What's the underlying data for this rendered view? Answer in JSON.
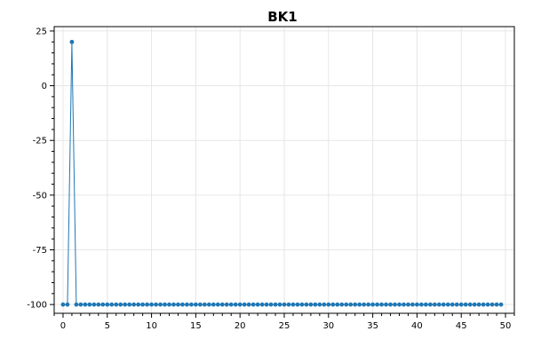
{
  "chart_data": {
    "type": "line",
    "title": "BK1",
    "xlabel": "",
    "ylabel": "",
    "xlim": [
      -1,
      51
    ],
    "ylim": [
      -104,
      27
    ],
    "x_ticks": [
      0,
      5,
      10,
      15,
      20,
      25,
      30,
      35,
      40,
      45,
      50
    ],
    "y_ticks": [
      -100,
      -75,
      -50,
      -25,
      0,
      25
    ],
    "grid": true,
    "legend": "none",
    "series": [
      {
        "color": "#1f77b4",
        "marker": "circle",
        "x": [
          0,
          0.5,
          1,
          1.5,
          2,
          2.5,
          3,
          3.5,
          4,
          4.5,
          5,
          5.5,
          6,
          6.5,
          7,
          7.5,
          8,
          8.5,
          9,
          9.5,
          10,
          10.5,
          11,
          11.5,
          12,
          12.5,
          13,
          13.5,
          14,
          14.5,
          15,
          15.5,
          16,
          16.5,
          17,
          17.5,
          18,
          18.5,
          19,
          19.5,
          20,
          20.5,
          21,
          21.5,
          22,
          22.5,
          23,
          23.5,
          24,
          24.5,
          25,
          25.5,
          26,
          26.5,
          27,
          27.5,
          28,
          28.5,
          29,
          29.5,
          30,
          30.5,
          31,
          31.5,
          32,
          32.5,
          33,
          33.5,
          34,
          34.5,
          35,
          35.5,
          36,
          36.5,
          37,
          37.5,
          38,
          38.5,
          39,
          39.5,
          40,
          40.5,
          41,
          41.5,
          42,
          42.5,
          43,
          43.5,
          44,
          44.5,
          45,
          45.5,
          46,
          46.5,
          47,
          47.5,
          48,
          48.5,
          49,
          49.5
        ],
        "y": [
          -100,
          -100,
          20,
          -100,
          -100,
          -100,
          -100,
          -100,
          -100,
          -100,
          -100,
          -100,
          -100,
          -100,
          -100,
          -100,
          -100,
          -100,
          -100,
          -100,
          -100,
          -100,
          -100,
          -100,
          -100,
          -100,
          -100,
          -100,
          -100,
          -100,
          -100,
          -100,
          -100,
          -100,
          -100,
          -100,
          -100,
          -100,
          -100,
          -100,
          -100,
          -100,
          -100,
          -100,
          -100,
          -100,
          -100,
          -100,
          -100,
          -100,
          -100,
          -100,
          -100,
          -100,
          -100,
          -100,
          -100,
          -100,
          -100,
          -100,
          -100,
          -100,
          -100,
          -100,
          -100,
          -100,
          -100,
          -100,
          -100,
          -100,
          -100,
          -100,
          -100,
          -100,
          -100,
          -100,
          -100,
          -100,
          -100,
          -100,
          -100,
          -100,
          -100,
          -100,
          -100,
          -100,
          -100,
          -100,
          -100,
          -100,
          -100,
          -100,
          -100,
          -100,
          -100,
          -100,
          -100,
          -100,
          -100,
          -100
        ]
      }
    ]
  }
}
